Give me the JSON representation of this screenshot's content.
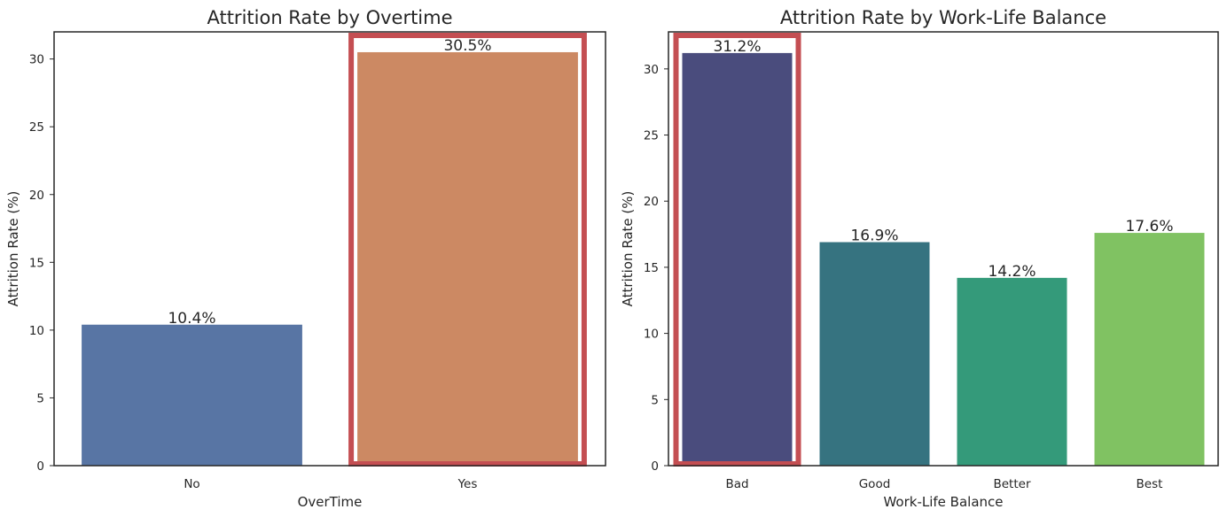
{
  "chart_data": [
    {
      "type": "bar",
      "title": "Attrition Rate by Overtime",
      "xlabel": "OverTime",
      "ylabel": "Attrition Rate (%)",
      "categories": [
        "No",
        "Yes"
      ],
      "values": [
        10.4,
        30.5
      ],
      "data_labels": [
        "10.4%",
        "30.5%"
      ],
      "colors": [
        "#5875a4",
        "#cc8963"
      ],
      "highlighted_category": "Yes",
      "highlight_color": "#c44e52",
      "ylim": [
        0,
        32.0
      ],
      "yticks": [
        0,
        5,
        10,
        15,
        20,
        25,
        30
      ],
      "grid": false
    },
    {
      "type": "bar",
      "title": "Attrition Rate by Work-Life Balance",
      "xlabel": "Work-Life Balance",
      "ylabel": "Attrition Rate (%)",
      "categories": [
        "Bad",
        "Good",
        "Better",
        "Best"
      ],
      "values": [
        31.2,
        16.9,
        14.2,
        17.6
      ],
      "data_labels": [
        "31.2%",
        "16.9%",
        "14.2%",
        "17.6%"
      ],
      "colors": [
        "#4a4c7d",
        "#367380",
        "#349a7a",
        "#80c262"
      ],
      "highlighted_category": "Bad",
      "highlight_color": "#c44e52",
      "ylim": [
        0,
        32.8
      ],
      "yticks": [
        0,
        5,
        10,
        15,
        20,
        25,
        30
      ],
      "grid": false
    }
  ]
}
